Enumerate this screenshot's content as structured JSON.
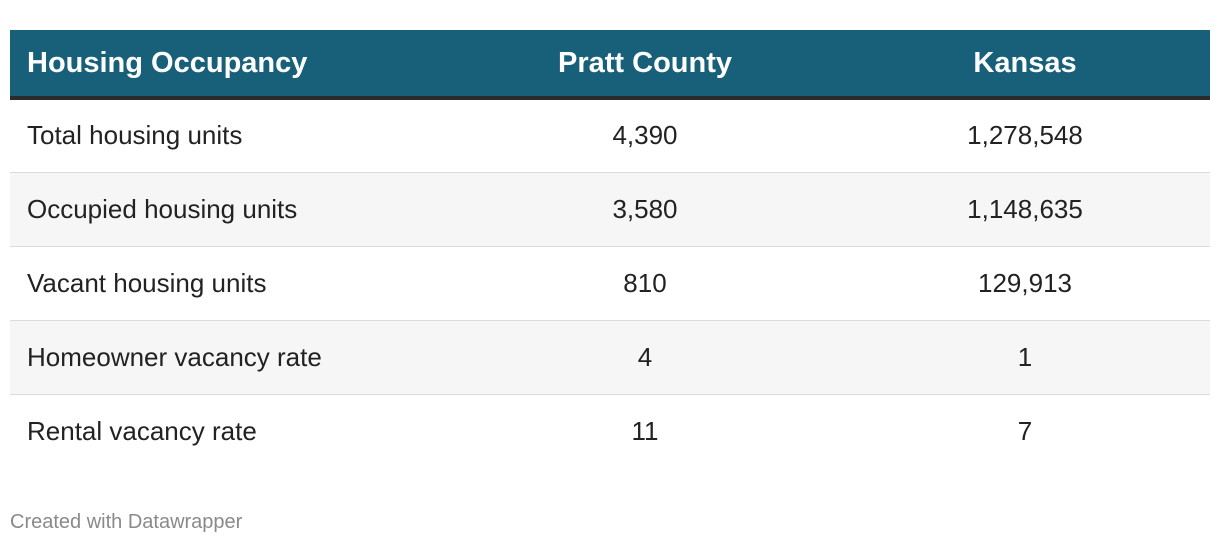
{
  "chart_data": {
    "type": "table",
    "columns": [
      "Housing Occupancy",
      "Pratt County",
      "Kansas"
    ],
    "rows": [
      [
        "Total housing units",
        "4,390",
        "1,278,548"
      ],
      [
        "Occupied housing units",
        "3,580",
        "1,148,635"
      ],
      [
        "Vacant housing units",
        "810",
        "129,913"
      ],
      [
        "Homeowner vacancy rate",
        "4",
        "1"
      ],
      [
        "Rental vacancy rate",
        "11",
        "7"
      ]
    ]
  },
  "colors": {
    "header_bg": "#186079",
    "header_text": "#ffffff",
    "stripe_bg": "#f6f6f6"
  },
  "footer": {
    "credit": "Created with Datawrapper"
  }
}
